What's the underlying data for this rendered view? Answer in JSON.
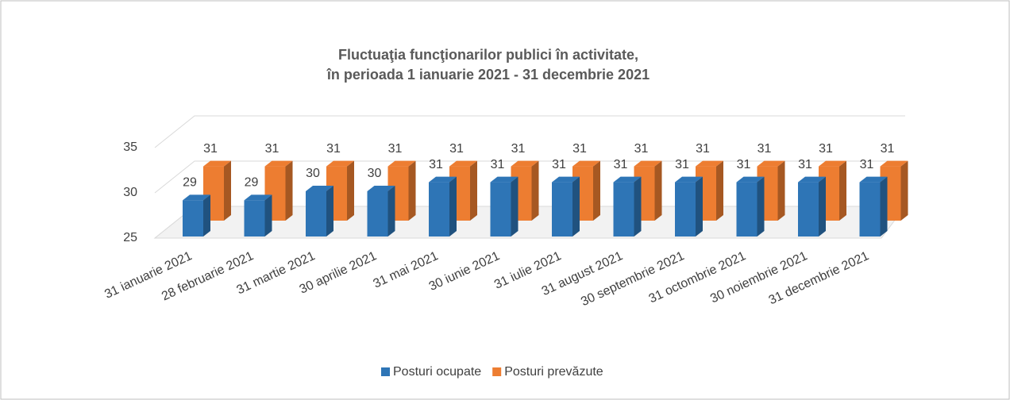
{
  "chart_data": {
    "type": "bar3d",
    "title": [
      "Fluctuaţia funcţionarilor publici în activitate,",
      "în perioada 1 ianuarie 2021 - 31 decembrie 2021"
    ],
    "categories": [
      "31 ianuarie 2021",
      "28 februarie 2021",
      "31 martie 2021",
      "30 aprilie 2021",
      "31 mai 2021",
      "30 iunie 2021",
      "31 iulie 2021",
      "31 august 2021",
      "30 septembrie 2021",
      "31 octombrie 2021",
      "30 noiembrie 2021",
      "31 decembrie 2021"
    ],
    "series": [
      {
        "name": "Posturi ocupate",
        "color": "#2e75b6",
        "values": [
          29,
          29,
          30,
          30,
          31,
          31,
          31,
          31,
          31,
          31,
          31,
          31
        ]
      },
      {
        "name": "Posturi prevăzute",
        "color": "#ed7d31",
        "values": [
          31,
          31,
          31,
          31,
          31,
          31,
          31,
          31,
          31,
          31,
          31,
          31
        ]
      }
    ],
    "ylim": [
      25,
      35
    ],
    "yticks": [
      25,
      30,
      35
    ],
    "grid": true,
    "legend": "bottom"
  }
}
